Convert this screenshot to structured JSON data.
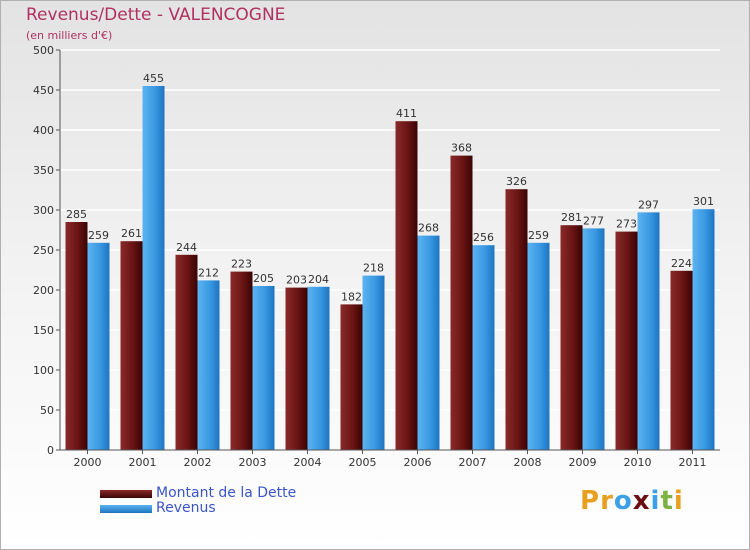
{
  "chart_data": {
    "type": "bar",
    "title": "Revenus/Dette - VALENCOGNE",
    "subtitle": "(en milliers d'€)",
    "categories": [
      "2000",
      "2001",
      "2002",
      "2003",
      "2004",
      "2005",
      "2006",
      "2007",
      "2008",
      "2009",
      "2010",
      "2011"
    ],
    "series": [
      {
        "name": "Montant de la Dette",
        "color": "#6b0f12",
        "values": [
          285,
          261,
          244,
          223,
          203,
          182,
          411,
          368,
          326,
          281,
          273,
          224
        ]
      },
      {
        "name": "Revenus",
        "color": "#3aa0e8",
        "values": [
          259,
          455,
          212,
          205,
          204,
          218,
          268,
          256,
          259,
          277,
          297,
          301
        ]
      }
    ],
    "ylim": [
      0,
      500
    ],
    "yticks": [
      0,
      50,
      100,
      150,
      200,
      250,
      300,
      350,
      400,
      450,
      500
    ],
    "grid": true,
    "legend_position": "bottom-left"
  },
  "brand": {
    "name": "Proxiti",
    "letters": [
      "P",
      "r",
      "o",
      "x",
      "i",
      "t",
      "i"
    ],
    "letter_colors": [
      "#e8a020",
      "#e8a020",
      "#3aa0e8",
      "#6b0f12",
      "#3aa0e8",
      "#7cb342",
      "#e8a020"
    ]
  }
}
